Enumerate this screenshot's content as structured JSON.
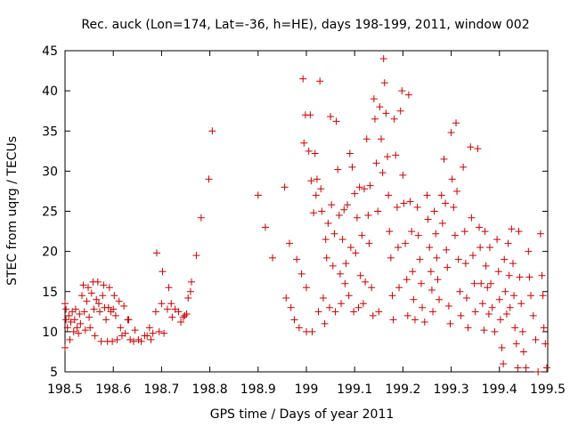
{
  "chart_data": {
    "type": "scatter",
    "title": "Rec. auck (Lon=174, Lat=-36, h=HE), days 198-199, 2011, window 002",
    "xlabel": "GPS time / Days of year 2011",
    "ylabel": "STEC from uqrg / TECUs",
    "xlim": [
      198.5,
      199.5
    ],
    "ylim": [
      5,
      45
    ],
    "xticks": [
      198.5,
      198.6,
      198.7,
      198.8,
      198.9,
      199.0,
      199.1,
      199.2,
      199.3,
      199.4,
      199.5
    ],
    "xtick_labels": [
      "198.5",
      "198.6",
      "198.7",
      "198.8",
      "198.9",
      "199",
      "199.1",
      "199.2",
      "199.3",
      "199.4",
      "199.5"
    ],
    "yticks": [
      5,
      10,
      15,
      20,
      25,
      30,
      35,
      40,
      45
    ],
    "ytick_labels": [
      "5",
      "10",
      "15",
      "20",
      "25",
      "30",
      "35",
      "40",
      "45"
    ],
    "grid": false,
    "legend": "none",
    "marker": "+",
    "marker_color": "#cc0000",
    "series": [
      {
        "name": "STEC",
        "points": [
          [
            198.5,
            13.5
          ],
          [
            198.5,
            8.0
          ],
          [
            198.502,
            12.8
          ],
          [
            198.502,
            11.5
          ],
          [
            198.505,
            10.5
          ],
          [
            198.508,
            12.0
          ],
          [
            198.51,
            9.0
          ],
          [
            198.512,
            11.2
          ],
          [
            198.515,
            12.5
          ],
          [
            198.518,
            10.0
          ],
          [
            198.52,
            11.5
          ],
          [
            198.522,
            12.8
          ],
          [
            198.525,
            10.5
          ],
          [
            198.528,
            9.8
          ],
          [
            198.53,
            12.2
          ],
          [
            198.532,
            11.0
          ],
          [
            198.535,
            14.5
          ],
          [
            198.538,
            15.8
          ],
          [
            198.54,
            12.5
          ],
          [
            198.542,
            10.2
          ],
          [
            198.545,
            13.8
          ],
          [
            198.548,
            15.5
          ],
          [
            198.55,
            11.8
          ],
          [
            198.552,
            10.5
          ],
          [
            198.555,
            14.8
          ],
          [
            198.558,
            16.2
          ],
          [
            198.56,
            12.8
          ],
          [
            198.562,
            9.5
          ],
          [
            198.565,
            14.0
          ],
          [
            198.568,
            16.2
          ],
          [
            198.57,
            13.5
          ],
          [
            198.572,
            12.5
          ],
          [
            198.575,
            8.8
          ],
          [
            198.578,
            14.5
          ],
          [
            198.58,
            15.8
          ],
          [
            198.582,
            13.0
          ],
          [
            198.585,
            11.5
          ],
          [
            198.588,
            8.8
          ],
          [
            198.59,
            13.0
          ],
          [
            198.592,
            15.5
          ],
          [
            198.595,
            12.5
          ],
          [
            198.598,
            8.8
          ],
          [
            198.6,
            12.8
          ],
          [
            198.602,
            14.5
          ],
          [
            198.605,
            12.0
          ],
          [
            198.608,
            9.0
          ],
          [
            198.612,
            13.8
          ],
          [
            198.615,
            10.5
          ],
          [
            198.618,
            9.5
          ],
          [
            198.622,
            13.2
          ],
          [
            198.625,
            9.8
          ],
          [
            198.63,
            11.5
          ],
          [
            198.632,
            11.5
          ],
          [
            198.635,
            9.0
          ],
          [
            198.642,
            8.8
          ],
          [
            198.645,
            10.2
          ],
          [
            198.652,
            9.0
          ],
          [
            198.658,
            8.8
          ],
          [
            198.665,
            9.5
          ],
          [
            198.67,
            9.5
          ],
          [
            198.675,
            10.5
          ],
          [
            198.678,
            9.0
          ],
          [
            198.682,
            9.8
          ],
          [
            198.688,
            12.5
          ],
          [
            198.69,
            19.8
          ],
          [
            198.695,
            10.0
          ],
          [
            198.7,
            13.5
          ],
          [
            198.702,
            17.5
          ],
          [
            198.705,
            9.8
          ],
          [
            198.712,
            12.8
          ],
          [
            198.715,
            15.5
          ],
          [
            198.72,
            13.5
          ],
          [
            198.722,
            11.8
          ],
          [
            198.728,
            12.8
          ],
          [
            198.735,
            12.5
          ],
          [
            198.74,
            11.2
          ],
          [
            198.745,
            11.8
          ],
          [
            198.748,
            12.0
          ],
          [
            198.752,
            12.2
          ],
          [
            198.755,
            14.2
          ],
          [
            198.76,
            15.0
          ],
          [
            198.762,
            16.2
          ],
          [
            198.772,
            19.5
          ],
          [
            198.782,
            24.2
          ],
          [
            198.798,
            29.0
          ],
          [
            198.805,
            35.0
          ],
          [
            198.9,
            27.0
          ],
          [
            198.915,
            23.0
          ],
          [
            198.93,
            19.2
          ],
          [
            198.955,
            28.0
          ],
          [
            198.958,
            14.2
          ],
          [
            198.965,
            21.0
          ],
          [
            198.968,
            13.0
          ],
          [
            198.975,
            11.5
          ],
          [
            198.98,
            19.0
          ],
          [
            198.985,
            10.5
          ],
          [
            198.99,
            17.2
          ],
          [
            198.993,
            41.5
          ],
          [
            198.995,
            33.5
          ],
          [
            198.998,
            37.0
          ],
          [
            199.0,
            15.5
          ],
          [
            199.0,
            10.0
          ],
          [
            199.005,
            32.5
          ],
          [
            199.008,
            37.0
          ],
          [
            199.01,
            28.8
          ],
          [
            199.012,
            10.0
          ],
          [
            199.015,
            24.8
          ],
          [
            199.018,
            32.2
          ],
          [
            199.02,
            27.0
          ],
          [
            199.022,
            29.0
          ],
          [
            199.025,
            12.5
          ],
          [
            199.028,
            41.2
          ],
          [
            199.03,
            27.8
          ],
          [
            199.032,
            25.0
          ],
          [
            199.035,
            14.2
          ],
          [
            199.038,
            11.0
          ],
          [
            199.04,
            21.5
          ],
          [
            199.042,
            19.2
          ],
          [
            199.045,
            23.5
          ],
          [
            199.048,
            13.0
          ],
          [
            199.05,
            36.8
          ],
          [
            199.052,
            25.8
          ],
          [
            199.055,
            18.2
          ],
          [
            199.058,
            22.2
          ],
          [
            199.06,
            12.5
          ],
          [
            199.062,
            36.2
          ],
          [
            199.065,
            30.2
          ],
          [
            199.068,
            24.5
          ],
          [
            199.07,
            17.2
          ],
          [
            199.072,
            13.5
          ],
          [
            199.075,
            21.5
          ],
          [
            199.078,
            25.2
          ],
          [
            199.08,
            16.0
          ],
          [
            199.082,
            18.5
          ],
          [
            199.085,
            25.8
          ],
          [
            199.088,
            14.5
          ],
          [
            199.09,
            32.2
          ],
          [
            199.092,
            20.5
          ],
          [
            199.095,
            30.5
          ],
          [
            199.098,
            12.5
          ],
          [
            199.1,
            27.2
          ],
          [
            199.102,
            19.8
          ],
          [
            199.105,
            24.2
          ],
          [
            199.108,
            13.0
          ],
          [
            199.11,
            28.0
          ],
          [
            199.112,
            17.0
          ],
          [
            199.115,
            22.0
          ],
          [
            199.118,
            13.5
          ],
          [
            199.12,
            27.8
          ],
          [
            199.122,
            16.2
          ],
          [
            199.125,
            34.0
          ],
          [
            199.128,
            24.5
          ],
          [
            199.13,
            21.0
          ],
          [
            199.132,
            28.2
          ],
          [
            199.135,
            15.5
          ],
          [
            199.138,
            12.0
          ],
          [
            199.14,
            39.0
          ],
          [
            199.142,
            36.5
          ],
          [
            199.145,
            31.0
          ],
          [
            199.148,
            25.0
          ],
          [
            199.15,
            12.5
          ],
          [
            199.152,
            38.0
          ],
          [
            199.155,
            34.0
          ],
          [
            199.158,
            29.8
          ],
          [
            199.16,
            44.0
          ],
          [
            199.162,
            41.0
          ],
          [
            199.165,
            37.2
          ],
          [
            199.168,
            31.8
          ],
          [
            199.17,
            27.0
          ],
          [
            199.172,
            22.5
          ],
          [
            199.175,
            19.2
          ],
          [
            199.178,
            14.5
          ],
          [
            199.18,
            11.5
          ],
          [
            199.182,
            36.5
          ],
          [
            199.185,
            32.0
          ],
          [
            199.188,
            25.5
          ],
          [
            199.19,
            20.5
          ],
          [
            199.192,
            15.5
          ],
          [
            199.195,
            37.5
          ],
          [
            199.198,
            40.0
          ],
          [
            199.2,
            29.5
          ],
          [
            199.202,
            26.0
          ],
          [
            199.205,
            21.0
          ],
          [
            199.208,
            16.5
          ],
          [
            199.21,
            12.0
          ],
          [
            199.212,
            39.5
          ],
          [
            199.215,
            26.2
          ],
          [
            199.218,
            22.5
          ],
          [
            199.22,
            17.5
          ],
          [
            199.222,
            14.0
          ],
          [
            199.225,
            11.5
          ],
          [
            199.23,
            25.5
          ],
          [
            199.232,
            22.0
          ],
          [
            199.235,
            19.0
          ],
          [
            199.238,
            16.0
          ],
          [
            199.24,
            13.0
          ],
          [
            199.245,
            11.2
          ],
          [
            199.25,
            27.0
          ],
          [
            199.252,
            24.0
          ],
          [
            199.255,
            20.5
          ],
          [
            199.258,
            17.5
          ],
          [
            199.26,
            15.2
          ],
          [
            199.262,
            12.5
          ],
          [
            199.265,
            25.0
          ],
          [
            199.268,
            22.2
          ],
          [
            199.27,
            19.2
          ],
          [
            199.272,
            16.5
          ],
          [
            199.275,
            14.0
          ],
          [
            199.28,
            27.0
          ],
          [
            199.282,
            23.5
          ],
          [
            199.285,
            31.5
          ],
          [
            199.288,
            26.0
          ],
          [
            199.29,
            20.2
          ],
          [
            199.292,
            18.0
          ],
          [
            199.295,
            13.2
          ],
          [
            199.298,
            11.0
          ],
          [
            199.3,
            34.8
          ],
          [
            199.302,
            29.0
          ],
          [
            199.305,
            25.5
          ],
          [
            199.308,
            22.0
          ],
          [
            199.31,
            36.0
          ],
          [
            199.312,
            27.5
          ],
          [
            199.315,
            19.0
          ],
          [
            199.318,
            15.0
          ],
          [
            199.32,
            12.0
          ],
          [
            199.325,
            30.5
          ],
          [
            199.328,
            22.5
          ],
          [
            199.33,
            18.5
          ],
          [
            199.332,
            14.2
          ],
          [
            199.335,
            10.5
          ],
          [
            199.34,
            33.0
          ],
          [
            199.342,
            24.2
          ],
          [
            199.345,
            19.5
          ],
          [
            199.348,
            16.0
          ],
          [
            199.35,
            12.5
          ],
          [
            199.355,
            32.8
          ],
          [
            199.358,
            23.0
          ],
          [
            199.36,
            20.5
          ],
          [
            199.362,
            16.0
          ],
          [
            199.365,
            13.5
          ],
          [
            199.368,
            10.2
          ],
          [
            199.37,
            22.5
          ],
          [
            199.372,
            18.2
          ],
          [
            199.375,
            15.5
          ],
          [
            199.378,
            12.2
          ],
          [
            199.38,
            20.5
          ],
          [
            199.382,
            16.0
          ],
          [
            199.385,
            13.0
          ],
          [
            199.39,
            10.0
          ],
          [
            199.395,
            21.5
          ],
          [
            199.398,
            17.5
          ],
          [
            199.4,
            14.0
          ],
          [
            199.402,
            11.5
          ],
          [
            199.405,
            8.0
          ],
          [
            199.408,
            6.0
          ],
          [
            199.41,
            19.0
          ],
          [
            199.412,
            15.0
          ],
          [
            199.415,
            12.2
          ],
          [
            199.418,
            21.0
          ],
          [
            199.42,
            17.0
          ],
          [
            199.422,
            13.0
          ],
          [
            199.425,
            22.8
          ],
          [
            199.428,
            18.5
          ],
          [
            199.43,
            14.5
          ],
          [
            199.432,
            10.5
          ],
          [
            199.435,
            8.5
          ],
          [
            199.438,
            5.5
          ],
          [
            199.44,
            22.5
          ],
          [
            199.442,
            16.8
          ],
          [
            199.445,
            13.5
          ],
          [
            199.448,
            10.0
          ],
          [
            199.45,
            7.5
          ],
          [
            199.455,
            5.5
          ],
          [
            199.46,
            20.0
          ],
          [
            199.462,
            16.8
          ],
          [
            199.465,
            14.5
          ],
          [
            199.47,
            12.0
          ],
          [
            199.475,
            9.0
          ],
          [
            199.48,
            5.0
          ],
          [
            199.485,
            22.2
          ],
          [
            199.488,
            17.0
          ],
          [
            199.49,
            14.5
          ],
          [
            199.492,
            10.5
          ],
          [
            199.495,
            8.5
          ],
          [
            199.498,
            5.5
          ]
        ]
      }
    ]
  }
}
